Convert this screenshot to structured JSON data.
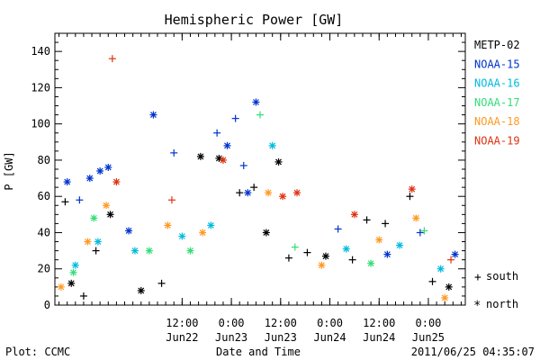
{
  "chart_data": {
    "type": "scatter",
    "title": "Hemispheric Power [GW]",
    "ylabel": "P [GW]",
    "xlabel": "Date and Time",
    "ylim": [
      0,
      150
    ],
    "yticks": [
      0,
      20,
      40,
      60,
      80,
      100,
      120,
      140
    ],
    "xlim": [
      "2011-06-21 05:00",
      "2011-06-25 09:00"
    ],
    "xticks": [
      {
        "time": "12:00",
        "date": "Jun22",
        "at": "2011-06-22 12:00"
      },
      {
        "time": "0:00",
        "date": "Jun23",
        "at": "2011-06-23 00:00"
      },
      {
        "time": "12:00",
        "date": "Jun23",
        "at": "2011-06-23 12:00"
      },
      {
        "time": "0:00",
        "date": "Jun24",
        "at": "2011-06-24 00:00"
      },
      {
        "time": "12:00",
        "date": "Jun24",
        "at": "2011-06-24 12:00"
      },
      {
        "time": "0:00",
        "date": "Jun25",
        "at": "2011-06-25 00:00"
      }
    ],
    "grid": false,
    "legend_position": "right",
    "markers": {
      "plus": "south",
      "asterisk": "north"
    },
    "series": [
      {
        "name": "METP-02",
        "color": "#000000",
        "points": [
          {
            "t": "2011-06-21 07:30",
            "v": 57,
            "m": "plus"
          },
          {
            "t": "2011-06-21 09:00",
            "v": 12,
            "m": "asterisk"
          },
          {
            "t": "2011-06-21 12:00",
            "v": 5,
            "m": "plus"
          },
          {
            "t": "2011-06-21 15:00",
            "v": 30,
            "m": "plus"
          },
          {
            "t": "2011-06-21 18:30",
            "v": 50,
            "m": "asterisk"
          },
          {
            "t": "2011-06-22 02:00",
            "v": 8,
            "m": "asterisk"
          },
          {
            "t": "2011-06-22 07:00",
            "v": 12,
            "m": "plus"
          },
          {
            "t": "2011-06-22 16:30",
            "v": 82,
            "m": "asterisk"
          },
          {
            "t": "2011-06-22 21:00",
            "v": 81,
            "m": "asterisk"
          },
          {
            "t": "2011-06-23 02:00",
            "v": 62,
            "m": "plus"
          },
          {
            "t": "2011-06-23 05:30",
            "v": 65,
            "m": "plus"
          },
          {
            "t": "2011-06-23 08:30",
            "v": 40,
            "m": "asterisk"
          },
          {
            "t": "2011-06-23 11:30",
            "v": 79,
            "m": "asterisk"
          },
          {
            "t": "2011-06-23 14:00",
            "v": 26,
            "m": "plus"
          },
          {
            "t": "2011-06-23 18:30",
            "v": 29,
            "m": "plus"
          },
          {
            "t": "2011-06-23 23:00",
            "v": 27,
            "m": "asterisk"
          },
          {
            "t": "2011-06-24 05:30",
            "v": 25,
            "m": "plus"
          },
          {
            "t": "2011-06-24 09:00",
            "v": 47,
            "m": "plus"
          },
          {
            "t": "2011-06-24 13:30",
            "v": 45,
            "m": "plus"
          },
          {
            "t": "2011-06-24 19:30",
            "v": 60,
            "m": "plus"
          },
          {
            "t": "2011-06-25 01:00",
            "v": 13,
            "m": "plus"
          },
          {
            "t": "2011-06-25 05:00",
            "v": 10,
            "m": "asterisk"
          }
        ]
      },
      {
        "name": "NOAA-15",
        "color": "#0033cc",
        "points": [
          {
            "t": "2011-06-21 08:00",
            "v": 68,
            "m": "asterisk"
          },
          {
            "t": "2011-06-21 11:00",
            "v": 58,
            "m": "plus"
          },
          {
            "t": "2011-06-21 13:30",
            "v": 70,
            "m": "asterisk"
          },
          {
            "t": "2011-06-21 16:00",
            "v": 74,
            "m": "asterisk"
          },
          {
            "t": "2011-06-21 18:00",
            "v": 76,
            "m": "asterisk"
          },
          {
            "t": "2011-06-21 23:00",
            "v": 41,
            "m": "asterisk"
          },
          {
            "t": "2011-06-22 05:00",
            "v": 105,
            "m": "asterisk"
          },
          {
            "t": "2011-06-22 10:00",
            "v": 84,
            "m": "plus"
          },
          {
            "t": "2011-06-22 20:30",
            "v": 95,
            "m": "plus"
          },
          {
            "t": "2011-06-22 23:00",
            "v": 88,
            "m": "asterisk"
          },
          {
            "t": "2011-06-23 01:00",
            "v": 103,
            "m": "plus"
          },
          {
            "t": "2011-06-23 03:00",
            "v": 77,
            "m": "plus"
          },
          {
            "t": "2011-06-23 06:00",
            "v": 112,
            "m": "asterisk"
          },
          {
            "t": "2011-06-23 04:00",
            "v": 62,
            "m": "asterisk"
          },
          {
            "t": "2011-06-24 02:00",
            "v": 42,
            "m": "plus"
          },
          {
            "t": "2011-06-24 14:00",
            "v": 28,
            "m": "asterisk"
          },
          {
            "t": "2011-06-24 22:00",
            "v": 40,
            "m": "plus"
          },
          {
            "t": "2011-06-25 06:30",
            "v": 28,
            "m": "asterisk"
          }
        ]
      },
      {
        "name": "NOAA-16",
        "color": "#00bbdd",
        "points": [
          {
            "t": "2011-06-21 10:00",
            "v": 22,
            "m": "asterisk"
          },
          {
            "t": "2011-06-21 15:30",
            "v": 35,
            "m": "asterisk"
          },
          {
            "t": "2011-06-22 00:30",
            "v": 30,
            "m": "asterisk"
          },
          {
            "t": "2011-06-22 12:00",
            "v": 38,
            "m": "asterisk"
          },
          {
            "t": "2011-06-22 19:00",
            "v": 44,
            "m": "asterisk"
          },
          {
            "t": "2011-06-23 10:00",
            "v": 88,
            "m": "asterisk"
          },
          {
            "t": "2011-06-24 04:00",
            "v": 31,
            "m": "asterisk"
          },
          {
            "t": "2011-06-24 17:00",
            "v": 33,
            "m": "asterisk"
          },
          {
            "t": "2011-06-25 03:00",
            "v": 20,
            "m": "asterisk"
          }
        ]
      },
      {
        "name": "NOAA-17",
        "color": "#33dd77",
        "points": [
          {
            "t": "2011-06-21 09:30",
            "v": 18,
            "m": "asterisk"
          },
          {
            "t": "2011-06-21 14:30",
            "v": 48,
            "m": "asterisk"
          },
          {
            "t": "2011-06-22 04:00",
            "v": 30,
            "m": "asterisk"
          },
          {
            "t": "2011-06-22 14:00",
            "v": 30,
            "m": "asterisk"
          },
          {
            "t": "2011-06-23 07:00",
            "v": 105,
            "m": "plus"
          },
          {
            "t": "2011-06-23 15:30",
            "v": 32,
            "m": "plus"
          },
          {
            "t": "2011-06-24 10:00",
            "v": 23,
            "m": "asterisk"
          },
          {
            "t": "2011-06-24 23:00",
            "v": 41,
            "m": "plus"
          }
        ]
      },
      {
        "name": "NOAA-18",
        "color": "#ff9922",
        "points": [
          {
            "t": "2011-06-21 06:30",
            "v": 10,
            "m": "asterisk"
          },
          {
            "t": "2011-06-21 13:00",
            "v": 35,
            "m": "asterisk"
          },
          {
            "t": "2011-06-21 17:30",
            "v": 55,
            "m": "asterisk"
          },
          {
            "t": "2011-06-22 08:30",
            "v": 44,
            "m": "asterisk"
          },
          {
            "t": "2011-06-22 17:00",
            "v": 40,
            "m": "asterisk"
          },
          {
            "t": "2011-06-23 09:00",
            "v": 62,
            "m": "asterisk"
          },
          {
            "t": "2011-06-23 22:00",
            "v": 22,
            "m": "asterisk"
          },
          {
            "t": "2011-06-24 12:00",
            "v": 36,
            "m": "asterisk"
          },
          {
            "t": "2011-06-24 21:00",
            "v": 48,
            "m": "asterisk"
          },
          {
            "t": "2011-06-25 04:00",
            "v": 4,
            "m": "asterisk"
          }
        ]
      },
      {
        "name": "NOAA-19",
        "color": "#dd3311",
        "points": [
          {
            "t": "2011-06-21 19:00",
            "v": 136,
            "m": "plus"
          },
          {
            "t": "2011-06-21 20:00",
            "v": 68,
            "m": "asterisk"
          },
          {
            "t": "2011-06-22 09:30",
            "v": 58,
            "m": "plus"
          },
          {
            "t": "2011-06-22 22:00",
            "v": 80,
            "m": "asterisk"
          },
          {
            "t": "2011-06-23 12:30",
            "v": 60,
            "m": "asterisk"
          },
          {
            "t": "2011-06-23 16:00",
            "v": 62,
            "m": "asterisk"
          },
          {
            "t": "2011-06-24 06:00",
            "v": 50,
            "m": "asterisk"
          },
          {
            "t": "2011-06-24 20:00",
            "v": 64,
            "m": "asterisk"
          },
          {
            "t": "2011-06-25 05:30",
            "v": 25,
            "m": "plus"
          }
        ]
      }
    ]
  },
  "footer": {
    "left": "Plot: CCMC",
    "center": "Date and Time",
    "right": "2011/06/25 04:35:07"
  },
  "legend_markers": {
    "south_label": "south",
    "north_label": "north"
  }
}
